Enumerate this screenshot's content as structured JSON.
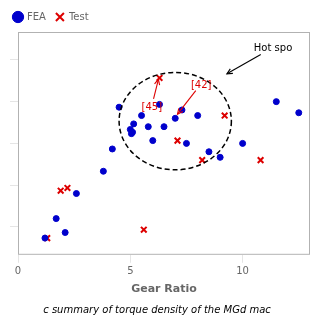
{
  "chart_data": {
    "type": "scatter",
    "xlabel": "Gear Ratio",
    "caption": "c summary of torque density of the MGd mac",
    "series": [
      {
        "name": "FEA",
        "color": "#0000cc",
        "marker": "circle",
        "x": [
          1.2,
          1.7,
          2.1,
          2.6,
          3.8,
          4.2,
          4.5,
          5.0,
          5.05,
          5.1,
          5.15,
          5.5,
          5.8,
          6.0,
          6.3,
          6.5,
          7.0,
          7.3,
          7.5,
          8.0,
          8.5,
          9.0,
          10.0,
          11.5,
          12.5
        ],
        "values": [
          1.1,
          1.8,
          1.3,
          2.7,
          3.5,
          4.3,
          5.8,
          5.0,
          4.85,
          4.9,
          5.2,
          5.5,
          5.1,
          4.6,
          5.9,
          5.1,
          5.4,
          5.7,
          4.5,
          5.5,
          4.2,
          4.0,
          4.5,
          6.0,
          5.6
        ]
      },
      {
        "name": "Test",
        "color": "#dd0000",
        "marker": "x",
        "x": [
          1.3,
          1.9,
          2.2,
          5.6,
          6.3,
          7.1,
          8.2,
          9.2,
          10.8
        ],
        "values": [
          1.1,
          2.8,
          2.9,
          1.4,
          6.85,
          4.6,
          3.9,
          5.5,
          3.9
        ]
      }
    ],
    "xlim": [
      0,
      13
    ],
    "ylim": [
      0.5,
      8.5
    ],
    "xticks": [
      0,
      5,
      10
    ],
    "yticks": [
      1.5,
      3,
      4.5,
      6,
      7.5
    ],
    "tick_labels": "x",
    "grid": false,
    "legend": "upper left",
    "ellipse": {
      "cx": 7.0,
      "cy": 5.3,
      "width": 5.0,
      "height": 3.5,
      "color": "#000000",
      "line_style": "dashed"
    },
    "annotations": [
      {
        "text": "[45]",
        "x": 5.5,
        "y": 5.7,
        "arrow_x": 6.25,
        "arrow_y": 6.8,
        "color": "#dd0000"
      },
      {
        "text": "[42]",
        "x": 7.7,
        "y": 6.5,
        "arrow_x": 7.1,
        "arrow_y": 5.55,
        "color": "#dd0000"
      },
      {
        "text": "Hot spo",
        "x": 10.5,
        "y": 7.8,
        "arrow_x": 9.3,
        "arrow_y": 7.0,
        "color": "#000000"
      }
    ]
  }
}
